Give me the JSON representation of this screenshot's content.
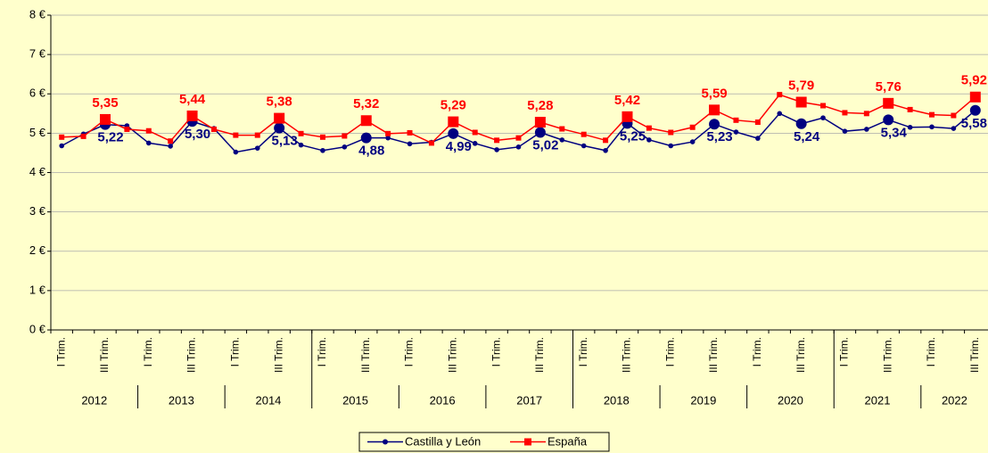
{
  "chart_data": {
    "type": "line",
    "categories": [
      "I Trim.",
      null,
      "III Trim.",
      null,
      "I Trim.",
      null,
      "III Trim.",
      null,
      "I Trim.",
      null,
      "III Trim.",
      null,
      "I Trim.",
      null,
      "III Trim.",
      null,
      "I Trim.",
      null,
      "III Trim.",
      null,
      "I Trim.",
      null,
      "III Trim.",
      null,
      "I Trim.",
      null,
      "III Trim.",
      null,
      "I Trim.",
      null,
      "III Trim.",
      null,
      "I Trim.",
      null,
      "III Trim.",
      null,
      "I Trim.",
      null,
      "III Trim.",
      null,
      "I Trim.",
      null,
      "III Trim."
    ],
    "years": [
      "2012",
      "2013",
      "2014",
      "2015",
      "2016",
      "2017",
      "2018",
      "2019",
      "2020",
      "2021",
      "2022"
    ],
    "series": [
      {
        "name": "Castilla y León",
        "color": "#000080",
        "values": [
          4.68,
          4.98,
          5.22,
          5.19,
          4.75,
          4.67,
          5.3,
          5.12,
          4.52,
          4.62,
          5.13,
          4.7,
          4.56,
          4.65,
          4.88,
          4.88,
          4.73,
          4.77,
          4.99,
          4.74,
          4.58,
          4.65,
          5.02,
          4.83,
          4.68,
          4.56,
          5.25,
          4.83,
          4.68,
          4.78,
          5.23,
          5.03,
          4.87,
          5.5,
          5.24,
          5.39,
          5.05,
          5.1,
          5.34,
          5.15,
          5.16,
          5.12,
          5.58
        ],
        "value_labels": [
          null,
          null,
          "5,22",
          null,
          null,
          null,
          "5,30",
          null,
          null,
          null,
          "5,13",
          null,
          null,
          null,
          "4,88",
          null,
          null,
          null,
          "4,99",
          null,
          null,
          null,
          "5,02",
          null,
          null,
          null,
          "5,25",
          null,
          null,
          null,
          "5,23",
          null,
          null,
          null,
          "5,24",
          null,
          null,
          null,
          "5,34",
          null,
          null,
          null,
          "5,58"
        ]
      },
      {
        "name": "España",
        "color": "#FF0000",
        "values": [
          4.9,
          4.92,
          5.35,
          5.1,
          5.06,
          4.8,
          5.44,
          5.1,
          4.95,
          4.95,
          5.38,
          4.99,
          4.9,
          4.93,
          5.32,
          4.99,
          5.01,
          4.75,
          5.29,
          5.02,
          4.82,
          4.88,
          5.28,
          5.11,
          4.97,
          4.82,
          5.42,
          5.13,
          5.02,
          5.15,
          5.59,
          5.33,
          5.28,
          5.98,
          5.79,
          5.7,
          5.52,
          5.5,
          5.76,
          5.6,
          5.47,
          5.45,
          5.92
        ],
        "value_labels": [
          null,
          null,
          "5,35",
          null,
          null,
          null,
          "5,44",
          null,
          null,
          null,
          "5,38",
          null,
          null,
          null,
          "5,32",
          null,
          null,
          null,
          "5,29",
          null,
          null,
          null,
          "5,28",
          null,
          null,
          null,
          "5,42",
          null,
          null,
          null,
          "5,59",
          null,
          null,
          null,
          "5,79",
          null,
          null,
          null,
          "5,76",
          null,
          null,
          null,
          "5,92"
        ]
      }
    ],
    "ylim": [
      0,
      8
    ],
    "yticks": [
      {
        "value": 0,
        "label": "0 €"
      },
      {
        "value": 1,
        "label": "1 €"
      },
      {
        "value": 2,
        "label": "2 €"
      },
      {
        "value": 3,
        "label": "3 €"
      },
      {
        "value": 4,
        "label": "4 €"
      },
      {
        "value": 5,
        "label": "5 €"
      },
      {
        "value": 6,
        "label": "6 €"
      },
      {
        "value": 7,
        "label": "7 €"
      },
      {
        "value": 8,
        "label": "8 €"
      }
    ],
    "grid": true
  }
}
